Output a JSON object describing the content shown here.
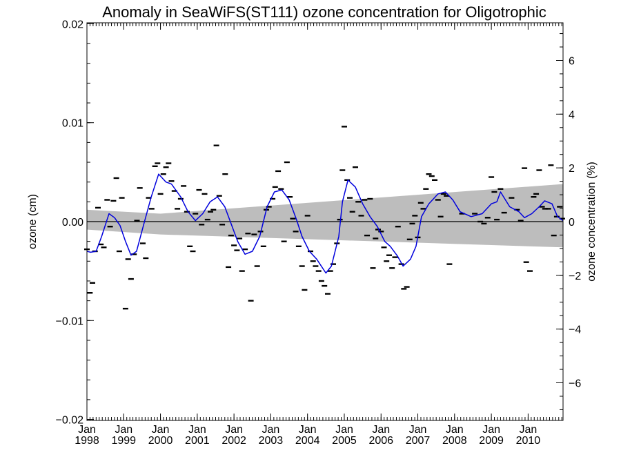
{
  "chart_data": {
    "type": "line",
    "title": "Anomaly in SeaWiFS(ST111) ozone concentration for Oligotrophic",
    "ylabel": "ozone (cm)",
    "y2label": "ozone concentration (%)",
    "ylim": [
      -0.0201,
      0.0201
    ],
    "y2lim": [
      -7.4,
      7.4
    ],
    "xlim": [
      1998.0,
      2010.95
    ],
    "yticks": [
      {
        "v": 0.02,
        "label": "0.02"
      },
      {
        "v": 0.01,
        "label": "0.01"
      },
      {
        "v": 0.0,
        "label": "0.00"
      },
      {
        "v": -0.01,
        "label": "−0.01"
      },
      {
        "v": -0.02,
        "label": "−0.02"
      }
    ],
    "y2ticks": [
      {
        "v": 6,
        "label": "6"
      },
      {
        "v": 4,
        "label": "4"
      },
      {
        "v": 2,
        "label": "2"
      },
      {
        "v": 0,
        "label": "0"
      },
      {
        "v": -2,
        "label": "−2"
      },
      {
        "v": -4,
        "label": "−4"
      },
      {
        "v": -6,
        "label": "−6"
      }
    ],
    "xticks": [
      {
        "v": 1998.0,
        "month": "Jan",
        "year": "1998"
      },
      {
        "v": 1999.0,
        "month": "Jan",
        "year": "1999"
      },
      {
        "v": 2000.0,
        "month": "Jan",
        "year": "2000"
      },
      {
        "v": 2001.0,
        "month": "Jan",
        "year": "2001"
      },
      {
        "v": 2002.0,
        "month": "Jan",
        "year": "2002"
      },
      {
        "v": 2003.0,
        "month": "Jan",
        "year": "2003"
      },
      {
        "v": 2004.0,
        "month": "Jan",
        "year": "2004"
      },
      {
        "v": 2005.0,
        "month": "Jan",
        "year": "2005"
      },
      {
        "v": 2006.0,
        "month": "Jan",
        "year": "2006"
      },
      {
        "v": 2007.0,
        "month": "Jan",
        "year": "2007"
      },
      {
        "v": 2008.0,
        "month": "Jan",
        "year": "2008"
      },
      {
        "v": 2009.0,
        "month": "Jan",
        "year": "2009"
      },
      {
        "v": 2010.0,
        "month": "Jan",
        "year": "2010"
      }
    ],
    "trend_band": {
      "x": [
        1998.0,
        2000.0,
        2010.95
      ],
      "upper": [
        0.0012,
        0.0008,
        0.0038
      ],
      "lower": [
        -0.0008,
        -0.0013,
        -0.0026
      ]
    },
    "zero_line": 0.0,
    "series": [
      {
        "values": [
          [
            1998.0,
            -0.003
          ],
          [
            1998.1,
            -0.0031
          ],
          [
            1998.25,
            -0.003
          ],
          [
            1998.4,
            -0.0015
          ],
          [
            1998.6,
            0.0008
          ],
          [
            1998.75,
            0.0004
          ],
          [
            1998.9,
            -0.0004
          ],
          [
            1999.05,
            -0.002
          ],
          [
            1999.2,
            -0.0034
          ],
          [
            1999.35,
            -0.003
          ],
          [
            1999.55,
            -0.0002
          ],
          [
            1999.75,
            0.0025
          ],
          [
            1999.95,
            0.0048
          ],
          [
            2000.15,
            0.004
          ],
          [
            2000.3,
            0.0038
          ],
          [
            2000.55,
            0.0025
          ],
          [
            2000.75,
            0.001
          ],
          [
            2000.95,
            0.0001
          ],
          [
            2001.15,
            0.0008
          ],
          [
            2001.35,
            0.002
          ],
          [
            2001.55,
            0.0025
          ],
          [
            2001.75,
            0.0015
          ],
          [
            2001.95,
            -0.0005
          ],
          [
            2002.1,
            -0.002
          ],
          [
            2002.3,
            -0.0033
          ],
          [
            2002.5,
            -0.003
          ],
          [
            2002.7,
            -0.0015
          ],
          [
            2002.9,
            0.0015
          ],
          [
            2003.1,
            0.003
          ],
          [
            2003.3,
            0.0032
          ],
          [
            2003.5,
            0.0022
          ],
          [
            2003.7,
            0.0002
          ],
          [
            2003.85,
            -0.0015
          ],
          [
            2004.05,
            -0.003
          ],
          [
            2004.25,
            -0.0038
          ],
          [
            2004.5,
            -0.0052
          ],
          [
            2004.65,
            -0.0045
          ],
          [
            2004.85,
            -0.0015
          ],
          [
            2004.95,
            0.002
          ],
          [
            2005.1,
            0.0042
          ],
          [
            2005.3,
            0.0035
          ],
          [
            2005.5,
            0.0018
          ],
          [
            2005.7,
            0.0005
          ],
          [
            2005.9,
            -0.0005
          ],
          [
            2006.1,
            -0.002
          ],
          [
            2006.25,
            -0.0025
          ],
          [
            2006.45,
            -0.0035
          ],
          [
            2006.6,
            -0.0045
          ],
          [
            2006.8,
            -0.0038
          ],
          [
            2006.95,
            -0.0025
          ],
          [
            2007.1,
            0.0005
          ],
          [
            2007.3,
            0.0018
          ],
          [
            2007.55,
            0.0028
          ],
          [
            2007.75,
            0.003
          ],
          [
            2007.95,
            0.0022
          ],
          [
            2008.15,
            0.001
          ],
          [
            2008.45,
            0.0005
          ],
          [
            2008.75,
            0.0008
          ],
          [
            2009.0,
            0.0018
          ],
          [
            2009.15,
            0.002
          ],
          [
            2009.25,
            0.003
          ],
          [
            2009.5,
            0.0015
          ],
          [
            2009.75,
            0.001
          ],
          [
            2009.9,
            0.0004
          ],
          [
            2010.1,
            0.0008
          ],
          [
            2010.3,
            0.0015
          ],
          [
            2010.45,
            0.0021
          ],
          [
            2010.65,
            0.0018
          ],
          [
            2010.8,
            0.0005
          ],
          [
            2010.95,
            0.0001
          ]
        ]
      },
      {
        "values": [
          [
            1998.0,
            -0.0028
          ],
          [
            1998.08,
            -0.0072
          ],
          [
            1998.15,
            -0.0062
          ],
          [
            1998.22,
            -0.003
          ],
          [
            1998.3,
            0.0014
          ],
          [
            1998.38,
            -0.0023
          ],
          [
            1998.46,
            -0.0026
          ],
          [
            1998.55,
            0.0022
          ],
          [
            1998.63,
            -0.0005
          ],
          [
            1998.72,
            0.0021
          ],
          [
            1998.8,
            0.0044
          ],
          [
            1998.88,
            -0.003
          ],
          [
            1998.95,
            0.0024
          ],
          [
            1999.05,
            -0.0088
          ],
          [
            1999.12,
            -0.0038
          ],
          [
            1999.2,
            -0.0058
          ],
          [
            1999.28,
            -0.0033
          ],
          [
            1999.36,
            0.0001
          ],
          [
            1999.44,
            0.0034
          ],
          [
            1999.52,
            -0.0022
          ],
          [
            1999.6,
            -0.0037
          ],
          [
            1999.68,
            0.0024
          ],
          [
            1999.76,
            0.0013
          ],
          [
            1999.85,
            0.0056
          ],
          [
            1999.92,
            0.0059
          ],
          [
            2000.0,
            0.0028
          ],
          [
            2000.08,
            0.0048
          ],
          [
            2000.15,
            0.0055
          ],
          [
            2000.22,
            0.0059
          ],
          [
            2000.3,
            0.0041
          ],
          [
            2000.38,
            0.0031
          ],
          [
            2000.46,
            0.0013
          ],
          [
            2000.55,
            0.0023
          ],
          [
            2000.63,
            0.0036
          ],
          [
            2000.72,
            0.001
          ],
          [
            2000.8,
            -0.0025
          ],
          [
            2000.88,
            -0.003
          ],
          [
            2000.95,
            0.0008
          ],
          [
            2001.05,
            0.0032
          ],
          [
            2001.12,
            -0.0003
          ],
          [
            2001.2,
            0.0028
          ],
          [
            2001.28,
            0.0002
          ],
          [
            2001.36,
            0.001
          ],
          [
            2001.44,
            0.0012
          ],
          [
            2001.52,
            0.0077
          ],
          [
            2001.6,
            0.0026
          ],
          [
            2001.68,
            -0.0003
          ],
          [
            2001.76,
            0.0048
          ],
          [
            2001.85,
            -0.0046
          ],
          [
            2001.92,
            -0.0014
          ],
          [
            2002.0,
            -0.0024
          ],
          [
            2002.08,
            -0.0029
          ],
          [
            2002.15,
            -0.0017
          ],
          [
            2002.22,
            -0.005
          ],
          [
            2002.3,
            -0.0028
          ],
          [
            2002.38,
            -0.0012
          ],
          [
            2002.46,
            -0.008
          ],
          [
            2002.55,
            -0.0013
          ],
          [
            2002.63,
            -0.0045
          ],
          [
            2002.72,
            -0.001
          ],
          [
            2002.8,
            -0.0025
          ],
          [
            2002.88,
            0.0012
          ],
          [
            2002.95,
            0.0015
          ],
          [
            2003.05,
            0.0023
          ],
          [
            2003.12,
            0.0035
          ],
          [
            2003.2,
            0.0051
          ],
          [
            2003.28,
            0.0033
          ],
          [
            2003.36,
            -0.002
          ],
          [
            2003.44,
            0.006
          ],
          [
            2003.52,
            0.0025
          ],
          [
            2003.6,
            0.0003
          ],
          [
            2003.68,
            -0.001
          ],
          [
            2003.76,
            -0.0025
          ],
          [
            2003.85,
            -0.0045
          ],
          [
            2003.92,
            -0.0069
          ],
          [
            2004.0,
            0.0006
          ],
          [
            2004.08,
            -0.003
          ],
          [
            2004.15,
            -0.004
          ],
          [
            2004.22,
            -0.0045
          ],
          [
            2004.3,
            -0.005
          ],
          [
            2004.38,
            -0.006
          ],
          [
            2004.46,
            -0.0065
          ],
          [
            2004.55,
            -0.0073
          ],
          [
            2004.62,
            -0.005
          ],
          [
            2004.7,
            -0.0043
          ],
          [
            2004.8,
            -0.0022
          ],
          [
            2004.88,
            0.0002
          ],
          [
            2004.95,
            0.0052
          ],
          [
            2005.0,
            0.0096
          ],
          [
            2005.08,
            0.0042
          ],
          [
            2005.15,
            0.0024
          ],
          [
            2005.22,
            0.001
          ],
          [
            2005.3,
            0.0055
          ],
          [
            2005.38,
            0.002
          ],
          [
            2005.46,
            0.0006
          ],
          [
            2005.55,
            0.0022
          ],
          [
            2005.62,
            -0.0014
          ],
          [
            2005.7,
            0.0023
          ],
          [
            2005.78,
            -0.0047
          ],
          [
            2005.85,
            -0.0017
          ],
          [
            2005.92,
            -0.0008
          ],
          [
            2006.0,
            -0.001
          ],
          [
            2006.08,
            -0.0026
          ],
          [
            2006.15,
            -0.004
          ],
          [
            2006.22,
            -0.0034
          ],
          [
            2006.3,
            -0.0047
          ],
          [
            2006.38,
            -0.0036
          ],
          [
            2006.46,
            -0.0005
          ],
          [
            2006.55,
            -0.0043
          ],
          [
            2006.62,
            -0.0068
          ],
          [
            2006.7,
            -0.0066
          ],
          [
            2006.78,
            -0.0018
          ],
          [
            2006.85,
            -0.0002
          ],
          [
            2006.92,
            0.0006
          ],
          [
            2007.0,
            -0.0016
          ],
          [
            2007.08,
            0.0019
          ],
          [
            2007.15,
            0.0013
          ],
          [
            2007.22,
            0.0033
          ],
          [
            2007.3,
            0.0048
          ],
          [
            2007.38,
            0.0046
          ],
          [
            2007.46,
            0.0042
          ],
          [
            2007.55,
            0.0022
          ],
          [
            2007.62,
            0.0005
          ],
          [
            2007.7,
            0.0028
          ],
          [
            2007.78,
            0.0026
          ],
          [
            2007.86,
            -0.0043
          ],
          [
            2008.2,
            0.0008
          ],
          [
            2008.55,
            0.0008
          ],
          [
            2008.7,
            0.0
          ],
          [
            2008.8,
            -0.0002
          ],
          [
            2008.9,
            0.0004
          ],
          [
            2009.0,
            0.0045
          ],
          [
            2009.08,
            0.003
          ],
          [
            2009.15,
            0.0002
          ],
          [
            2009.25,
            0.0033
          ],
          [
            2009.35,
            0.0009
          ],
          [
            2009.55,
            0.0024
          ],
          [
            2009.7,
            0.0012
          ],
          [
            2009.8,
            0.0001
          ],
          [
            2009.9,
            0.0054
          ],
          [
            2009.95,
            -0.0041
          ],
          [
            2010.05,
            -0.005
          ],
          [
            2010.15,
            0.0025
          ],
          [
            2010.22,
            0.0028
          ],
          [
            2010.3,
            0.0052
          ],
          [
            2010.38,
            0.0015
          ],
          [
            2010.46,
            0.0013
          ],
          [
            2010.55,
            0.0013
          ],
          [
            2010.62,
            0.0057
          ],
          [
            2010.7,
            -0.0014
          ],
          [
            2010.78,
            0.0005
          ],
          [
            2010.86,
            0.0015
          ],
          [
            2010.93,
            0.0003
          ]
        ]
      }
    ],
    "grid": false,
    "colors": {
      "trend_band": "#bdbdbd",
      "series_line": "#0000dd",
      "points": "#000000",
      "axis": "#000000"
    }
  }
}
